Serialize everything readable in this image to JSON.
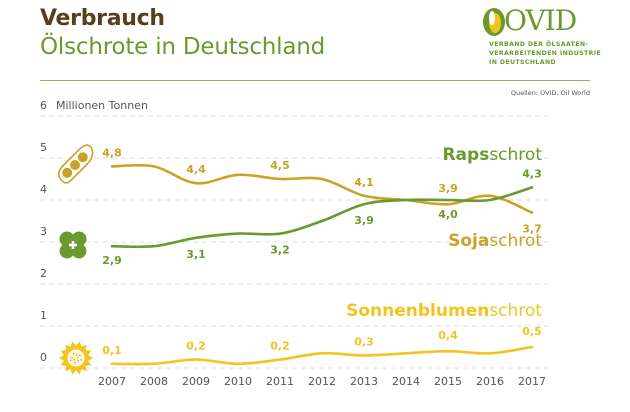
{
  "header": {
    "title": "Verbrauch",
    "subtitle": "Ölschrote in Deutschland",
    "logo": "OVID",
    "org_lines": [
      "VERBAND DER ÖLSAATEN-",
      "VERARBEITENDEN INDUSTRIE",
      "IN DEUTSCHLAND"
    ],
    "source": "Quellen: OVID, Oil World"
  },
  "colors": {
    "raps": "#6a9a2e",
    "soja": "#c9a227",
    "sonnenblumen": "#f2c420",
    "title": "#5a3e1b",
    "grid": "#dddddd"
  },
  "chart_data": {
    "type": "line",
    "title": "Verbrauch Ölschrote in Deutschland",
    "ylabel": "Millionen Tonnen",
    "xlabel": "",
    "ylim": [
      0,
      6
    ],
    "yticks": [
      0,
      1,
      2,
      3,
      4,
      5,
      6
    ],
    "grid": true,
    "x": [
      "2007",
      "2008",
      "2009",
      "2010",
      "2011",
      "2012",
      "2013",
      "2014",
      "2015",
      "2016",
      "2017"
    ],
    "series": [
      {
        "key": "soja",
        "name_bold": "Soja",
        "name_rest": "schrot",
        "icon": "soybean-pod-icon",
        "values": [
          4.8,
          4.8,
          4.4,
          4.6,
          4.5,
          4.5,
          4.1,
          4.0,
          3.9,
          4.1,
          3.7
        ],
        "labels": {
          "2007": "4,8",
          "2009": "4,4",
          "2011": "4,5",
          "2013": "4,1",
          "2015": "3,9",
          "2017": "3,7"
        }
      },
      {
        "key": "raps",
        "name_bold": "Raps",
        "name_rest": "schrot",
        "icon": "rapeseed-flower-icon",
        "values": [
          2.9,
          2.9,
          3.1,
          3.2,
          3.2,
          3.5,
          3.9,
          4.0,
          4.0,
          4.0,
          4.3
        ],
        "labels": {
          "2007": "2,9",
          "2009": "3,1",
          "2011": "3,2",
          "2013": "3,9",
          "2015": "4,0",
          "2017": "4,3"
        }
      },
      {
        "key": "sonnenblumen",
        "name_bold": "Sonnenblumen",
        "name_rest": "schrot",
        "icon": "sunflower-icon",
        "values": [
          0.1,
          0.1,
          0.2,
          0.1,
          0.2,
          0.35,
          0.3,
          0.35,
          0.4,
          0.35,
          0.5
        ],
        "labels": {
          "2007": "0,1",
          "2009": "0,2",
          "2011": "0,2",
          "2013": "0,3",
          "2015": "0,4",
          "2017": "0,5"
        }
      }
    ]
  }
}
